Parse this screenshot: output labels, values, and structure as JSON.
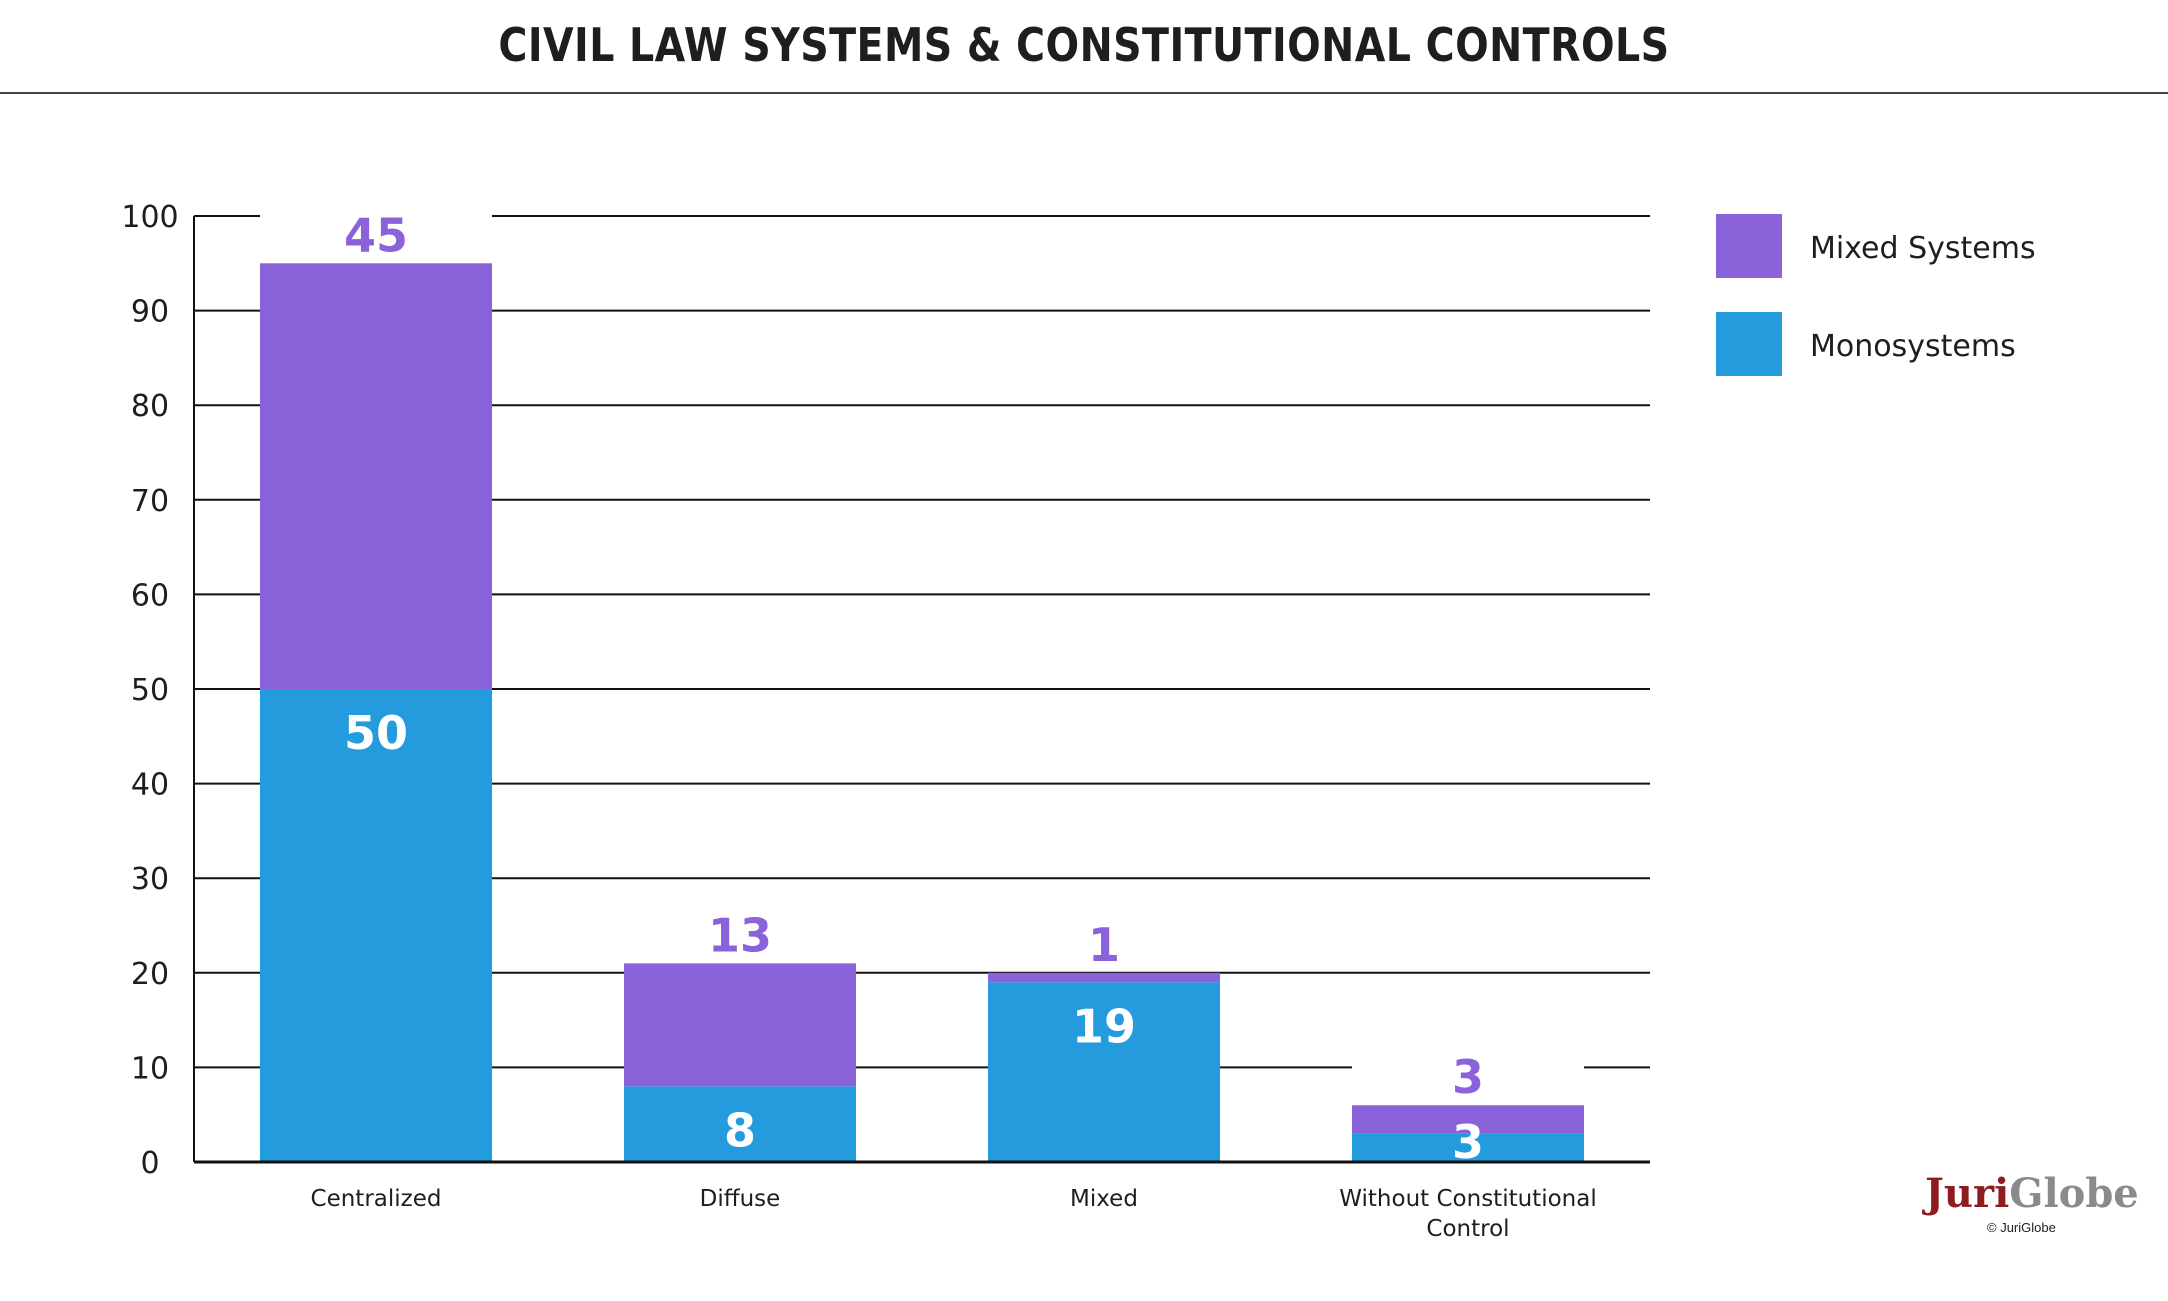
{
  "chart_data": {
    "type": "bar",
    "stacked": true,
    "title": "CIVIL LAW SYSTEMS & CONSTITUTIONAL CONTROLS",
    "categories": [
      [
        "Centralized"
      ],
      [
        "Diffuse"
      ],
      [
        "Mixed"
      ],
      [
        "Without Constitutional",
        "Control"
      ]
    ],
    "series": [
      {
        "name": "Monosystems",
        "values": [
          50,
          8,
          19,
          3
        ],
        "color": "#239bdd"
      },
      {
        "name": "Mixed Systems",
        "values": [
          45,
          13,
          1,
          3
        ],
        "color": "#8a63db"
      }
    ],
    "ylim": [
      0,
      100
    ],
    "yticks": [
      "0",
      "10",
      "20",
      "30",
      "40",
      "50",
      "60",
      "70",
      "80",
      "90",
      "100"
    ],
    "grid": true,
    "legend_position": "top-right",
    "legend_order": [
      "Mixed Systems",
      "Monosystems"
    ]
  },
  "logo": {
    "part1": "Juri",
    "part2": "Globe",
    "copyright": "© JuriGlobe"
  }
}
